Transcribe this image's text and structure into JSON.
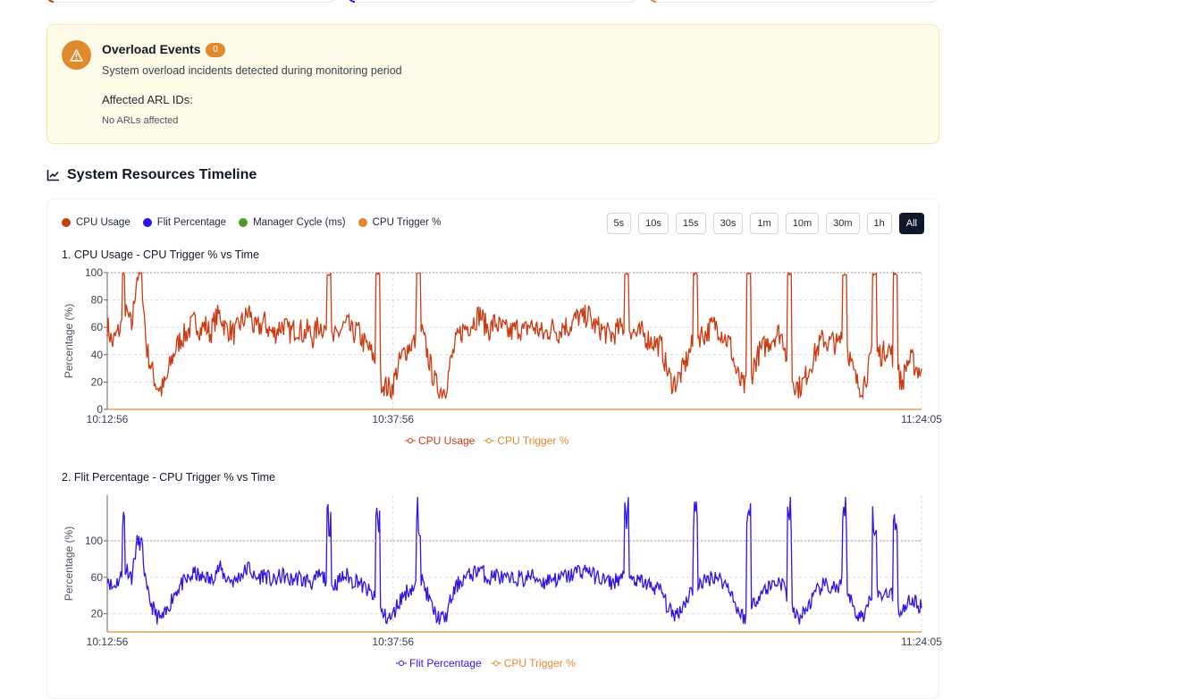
{
  "overload": {
    "title": "Overload Events",
    "count": "0",
    "description": "System overload incidents detected during monitoring period",
    "affected_label": "Affected ARL IDs:",
    "affected_value": "No ARLs affected"
  },
  "timeline": {
    "title": "System Resources Timeline",
    "legend": [
      {
        "label": "CPU Usage",
        "color": "#c2410c"
      },
      {
        "label": "Flit Percentage",
        "color": "#2f16e6"
      },
      {
        "label": "Manager Cycle (ms)",
        "color": "#4d9a2a"
      },
      {
        "label": "CPU Trigger %",
        "color": "#e08a2e"
      }
    ],
    "ranges": [
      "5s",
      "10s",
      "15s",
      "30s",
      "1m",
      "10m",
      "30m",
      "1h",
      "All"
    ],
    "active_range": "All"
  },
  "colors": {
    "cpu": "#cc3a12",
    "flit": "#2f16e6",
    "trigger": "#e08a2e",
    "warning": "#e08a2e"
  },
  "chart_data": [
    {
      "type": "line",
      "title": "1. CPU Usage - CPU Trigger % vs Time",
      "ylabel": "Percentage (%)",
      "ylim": [
        0,
        100
      ],
      "yticks": [
        0,
        20,
        40,
        60,
        80,
        100
      ],
      "xticks": [
        "10:12:56",
        "10:37:56",
        "11:24:05"
      ],
      "x_range": [
        "10:12:56",
        "11:24:05"
      ],
      "grid": true,
      "series": [
        {
          "name": "CPU Usage",
          "color": "#cc3a12",
          "values": [
            62,
            48,
            55,
            62,
            70,
            60,
            98,
            98,
            45,
            30,
            18,
            14,
            20,
            35,
            45,
            52,
            55,
            60,
            65,
            58,
            62,
            55,
            66,
            70,
            60,
            58,
            55,
            62,
            66,
            72,
            58,
            60,
            64,
            58,
            55,
            60,
            62,
            56,
            58,
            60,
            55,
            58,
            52,
            62,
            60,
            57,
            50,
            55,
            60,
            62,
            55,
            58,
            50,
            46,
            40,
            32,
            20,
            16,
            15,
            28,
            38,
            44,
            48,
            50,
            58,
            45,
            30,
            18,
            14,
            16,
            34,
            48,
            56,
            60,
            62,
            66,
            70,
            62,
            58,
            64,
            60,
            58,
            56,
            58,
            60,
            56,
            62,
            60,
            58,
            54,
            58,
            60,
            56,
            62,
            60,
            64,
            68,
            66,
            70,
            62,
            60,
            58,
            55,
            54,
            58,
            60,
            62,
            58,
            54,
            56,
            52,
            50,
            48,
            46,
            30,
            20,
            20,
            26,
            35,
            45,
            50,
            55,
            55,
            60,
            62,
            58,
            52,
            48,
            30,
            20,
            16,
            20,
            34,
            42,
            46,
            50,
            54,
            56,
            50,
            30,
            20,
            16,
            20,
            30,
            38,
            46,
            52,
            48,
            50,
            46,
            56,
            44,
            28,
            18,
            17,
            28,
            40,
            42,
            40,
            46,
            40,
            30,
            18,
            34,
            36,
            30,
            28
          ]
        },
        {
          "name": "CPU Trigger %",
          "color": "#e08a2e",
          "values": [
            100
          ]
        }
      ],
      "spikes": [
        [
          0.018,
          0.022
        ],
        [
          0.27,
          0.275
        ],
        [
          0.33,
          0.335
        ],
        [
          0.38,
          0.385
        ],
        [
          0.635,
          0.64
        ],
        [
          0.72,
          0.725
        ],
        [
          0.785,
          0.79
        ],
        [
          0.835,
          0.84
        ],
        [
          0.903,
          0.908
        ],
        [
          0.94,
          0.945
        ],
        [
          0.965,
          0.97
        ]
      ]
    },
    {
      "type": "line",
      "title": "2. Flit Percentage - CPU Trigger % vs Time",
      "ylabel": "Percentage (%)",
      "ylim": [
        0,
        150
      ],
      "yticks": [
        20,
        60,
        100
      ],
      "xticks": [
        "10:12:56",
        "10:37:56",
        "11:24:05"
      ],
      "x_range": [
        "10:12:56",
        "11:24:05"
      ],
      "grid": true,
      "series": [
        {
          "name": "Flit Percentage",
          "color": "#2f16e6"
        },
        {
          "name": "CPU Trigger %",
          "color": "#e08a2e",
          "values": [
            100
          ]
        }
      ]
    }
  ]
}
